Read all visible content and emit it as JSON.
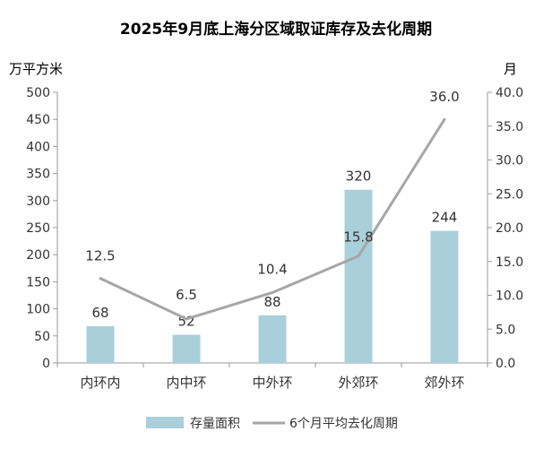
{
  "chart_data": {
    "type": "bar",
    "title": "2025年9月底上海分区域取证库存及去化周期",
    "categories": [
      "内环内",
      "内中环",
      "中外环",
      "外郊环",
      "郊外环"
    ],
    "left_axis": {
      "unit": "万平方米",
      "ylim": [
        0,
        500
      ],
      "ticks": [
        "0",
        "50",
        "100",
        "150",
        "200",
        "250",
        "300",
        "350",
        "400",
        "450",
        "500"
      ]
    },
    "right_axis": {
      "unit": "月",
      "ylim": [
        0,
        40
      ],
      "ticks": [
        "0.0",
        "5.0",
        "10.0",
        "15.0",
        "20.0",
        "25.0",
        "30.0",
        "35.0",
        "40.0"
      ]
    },
    "series": [
      {
        "name": "存量面积",
        "type": "bar",
        "axis": "left",
        "values": [
          68,
          52,
          88,
          320,
          244
        ],
        "labels": [
          "68",
          "52",
          "88",
          "320",
          "244"
        ]
      },
      {
        "name": "6个月平均去化周期",
        "type": "line",
        "axis": "right",
        "values": [
          12.5,
          6.5,
          10.4,
          15.8,
          36.0
        ],
        "labels": [
          "12.5",
          "6.5",
          "10.4",
          "15.8",
          "36.0"
        ]
      }
    ],
    "legend": {
      "position": "bottom"
    },
    "grid": false,
    "colors": {
      "bar": "#a9cfda",
      "line": "#a6a6a6",
      "axis": "#9a9a9a",
      "text": "#333333",
      "title": "#000000"
    }
  }
}
